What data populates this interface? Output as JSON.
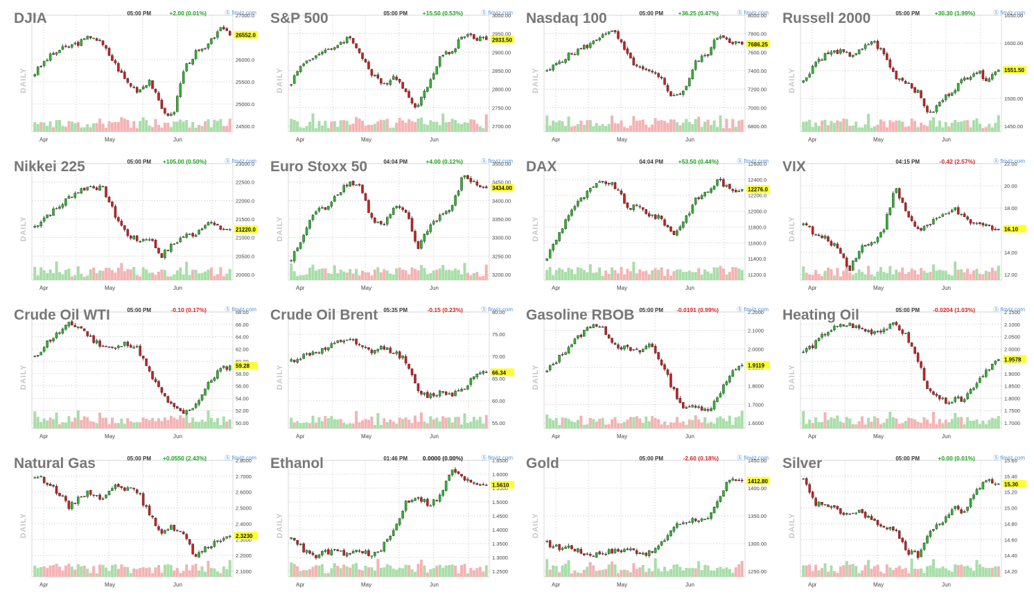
{
  "panels": [
    {
      "title": "DJIA",
      "time": "05:00 PM",
      "change": "+2.00 (0.01%)",
      "dir": "up",
      "source": "finviz.com",
      "last": "26552.0",
      "y_ticks": [
        "27000.0",
        "26000.0",
        "25500.0",
        "25000.0",
        "24500.0"
      ],
      "months": [
        "Apr",
        "May",
        "Jun"
      ]
    },
    {
      "title": "S&P 500",
      "time": "05:00 PM",
      "change": "+15.50 (0.53%)",
      "dir": "up",
      "source": "finviz.com",
      "last": "2933.50",
      "y_ticks": [
        "3000.00",
        "2950.00",
        "2900.00",
        "2850.00",
        "2800.00",
        "2750.00",
        "2700.00"
      ],
      "months": [
        "Apr",
        "May",
        "Jun"
      ]
    },
    {
      "title": "Nasdaq 100",
      "time": "05:00 PM",
      "change": "+36.25 (0.47%)",
      "dir": "up",
      "source": "finviz.com",
      "last": "7686.25",
      "y_ticks": [
        "8000.00",
        "7800.00",
        "7600.00",
        "7400.00",
        "7200.00",
        "7000.00",
        "6800.00"
      ],
      "months": [
        "Apr",
        "May",
        "Jun"
      ]
    },
    {
      "title": "Russell 2000",
      "time": "05:00 PM",
      "change": "+30.30 (1.99%)",
      "dir": "up",
      "source": "finviz.com",
      "last": "1551.50",
      "y_ticks": [
        "1650.00",
        "1600.00",
        "1550.00",
        "1500.00",
        "1450.00"
      ],
      "months": [
        "Apr",
        "May",
        "Jun"
      ]
    },
    {
      "title": "Nikkei 225",
      "time": "05:00 PM",
      "change": "+105.00 (0.50%)",
      "dir": "up",
      "source": "finviz.com",
      "last": "21220.0",
      "y_ticks": [
        "23000.0",
        "22500.0",
        "22000.0",
        "21500.0",
        "21000.0",
        "20500.0",
        "20000.0"
      ],
      "months": [
        "Apr",
        "May",
        "Jun"
      ]
    },
    {
      "title": "Euro Stoxx 50",
      "time": "04:04 PM",
      "change": "+4.00 (0.12%)",
      "dir": "up",
      "source": "finviz.com",
      "last": "3434.00",
      "y_ticks": [
        "3500.00",
        "3450.00",
        "3400.00",
        "3350.00",
        "3300.00",
        "3250.00",
        "3200.00"
      ],
      "months": [
        "Apr",
        "May",
        "Jun"
      ]
    },
    {
      "title": "DAX",
      "time": "04:04 PM",
      "change": "+53.50 (0.44%)",
      "dir": "up",
      "source": "finviz.com",
      "last": "12276.0",
      "y_ticks": [
        "12600.0",
        "12400.0",
        "12200.0",
        "12000.0",
        "11800.0",
        "11600.0",
        "11400.0",
        "11200.0"
      ],
      "months": [
        "Apr",
        "May",
        "Jun"
      ]
    },
    {
      "title": "VIX",
      "time": "04:15 PM",
      "change": "-0.42 (2.57%)",
      "dir": "down",
      "source": "finviz.com",
      "last": "16.10",
      "y_ticks": [
        "22.00",
        "20.00",
        "18.00",
        "16.00",
        "14.00",
        "12.00"
      ],
      "months": [
        "Apr",
        "May",
        "Jun"
      ]
    },
    {
      "title": "Crude Oil WTI",
      "time": "05:00 PM",
      "change": "-0.10 (0.17%)",
      "dir": "down",
      "source": "finviz.com",
      "last": "59.28",
      "y_ticks": [
        "68.00",
        "66.00",
        "64.00",
        "62.00",
        "60.00",
        "58.00",
        "56.00",
        "54.00",
        "52.00",
        "50.00"
      ],
      "months": [
        "Apr",
        "May",
        "Jun"
      ]
    },
    {
      "title": "Crude Oil Brent",
      "time": "05:35 PM",
      "change": "-0.15 (0.23%)",
      "dir": "down",
      "source": "finviz.com",
      "last": "66.34",
      "y_ticks": [
        "80.00",
        "75.00",
        "70.00",
        "65.00",
        "60.00",
        "55.00"
      ],
      "months": [
        "Apr",
        "May",
        "Jun"
      ]
    },
    {
      "title": "Gasoline RBOB",
      "time": "05:00 PM",
      "change": "-0.0191 (0.99%)",
      "dir": "down",
      "source": "finviz.com",
      "last": "1.9119",
      "y_ticks": [
        "2.2000",
        "2.1000",
        "2.0000",
        "1.9000",
        "1.8000",
        "1.7000",
        "1.6000"
      ],
      "months": [
        "Apr",
        "May",
        "Jun"
      ]
    },
    {
      "title": "Heating Oil",
      "time": "05:00 PM",
      "change": "-0.0204 (1.03%)",
      "dir": "down",
      "source": "finviz.com",
      "last": "1.9578",
      "y_ticks": [
        "2.1500",
        "2.1000",
        "2.0500",
        "2.0000",
        "1.9500",
        "1.9000",
        "1.8500",
        "1.8000",
        "1.7500",
        "1.7000"
      ],
      "months": [
        "Apr",
        "May",
        "Jun"
      ]
    },
    {
      "title": "Natural Gas",
      "time": "05:00 PM",
      "change": "+0.0550 (2.43%)",
      "dir": "up",
      "source": "finviz.com",
      "last": "2.3230",
      "y_ticks": [
        "2.8000",
        "2.7000",
        "2.6000",
        "2.5000",
        "2.4000",
        "2.3000",
        "2.2000",
        "2.1000"
      ],
      "months": [
        "Apr",
        "May",
        "Jun"
      ]
    },
    {
      "title": "Ethanol",
      "time": "01:46 PM",
      "change": "0.0000 (0.00%)",
      "dir": "flat",
      "source": "finviz.com",
      "last": "1.5610",
      "y_ticks": [
        "1.6500",
        "1.6000",
        "1.5500",
        "1.5000",
        "1.4500",
        "1.4000",
        "1.3500",
        "1.3000",
        "1.2500"
      ],
      "months": [
        "Apr",
        "May",
        "Jun"
      ]
    },
    {
      "title": "Gold",
      "time": "05:00 PM",
      "change": "-2.60 (0.18%)",
      "dir": "down",
      "source": "finviz.com",
      "last": "1412.80",
      "y_ticks": [
        "1450.00",
        "1400.00",
        "1350.00",
        "1300.00",
        "1250.00"
      ],
      "months": [
        "Apr",
        "May",
        "Jun"
      ]
    },
    {
      "title": "Silver",
      "time": "05:00 PM",
      "change": "+0.00 (0.01%)",
      "dir": "up",
      "source": "finviz.com",
      "last": "15.30",
      "y_ticks": [
        "15.60",
        "15.40",
        "15.20",
        "15.00",
        "14.80",
        "14.60",
        "14.40",
        "14.20"
      ],
      "months": [
        "Apr",
        "May",
        "Jun"
      ]
    }
  ],
  "side_label": "DAILY",
  "colors": {
    "up": "#1aa31a",
    "down": "#d22222",
    "candle_up": "#2fb52f",
    "candle_down": "#cc1f1f",
    "vol_up": "#a8dea8",
    "vol_down": "#f4b3b3",
    "last_bg": "#ffff33",
    "title": "#777777"
  },
  "chart_data": [
    {
      "type": "candlestick",
      "title": "DJIA",
      "ylim": [
        24500,
        27000
      ],
      "shape": [
        25700,
        26000,
        26200,
        26300,
        26400,
        26550,
        26300,
        25900,
        25500,
        25300,
        25550,
        24900,
        24700,
        25800,
        26150,
        26250,
        26700,
        26552
      ]
    },
    {
      "type": "candlestick",
      "title": "S&P 500",
      "ylim": [
        2700,
        3000
      ],
      "shape": [
        2820,
        2870,
        2890,
        2900,
        2920,
        2940,
        2900,
        2840,
        2810,
        2840,
        2790,
        2750,
        2820,
        2890,
        2900,
        2950,
        2940,
        2933.5
      ]
    },
    {
      "type": "candlestick",
      "title": "Nasdaq 100",
      "ylim": [
        6800,
        8000
      ],
      "shape": [
        7380,
        7500,
        7570,
        7640,
        7700,
        7820,
        7800,
        7560,
        7420,
        7380,
        7300,
        7110,
        7200,
        7500,
        7580,
        7800,
        7720,
        7686.25
      ]
    },
    {
      "type": "candlestick",
      "title": "Russell 2000",
      "ylim": [
        1450,
        1650
      ],
      "shape": [
        1530,
        1565,
        1580,
        1585,
        1578,
        1585,
        1605,
        1580,
        1540,
        1530,
        1510,
        1470,
        1495,
        1515,
        1535,
        1550,
        1535,
        1551.5
      ]
    },
    {
      "type": "candlestick",
      "title": "Nikkei 225",
      "ylim": [
        20000,
        23000
      ],
      "shape": [
        21300,
        21600,
        21800,
        22100,
        22300,
        22400,
        22300,
        21600,
        21100,
        20900,
        21000,
        20500,
        20800,
        21050,
        21100,
        21450,
        21250,
        21220
      ]
    },
    {
      "type": "candlestick",
      "title": "Euro Stoxx 50",
      "ylim": [
        3200,
        3500
      ],
      "shape": [
        3240,
        3300,
        3370,
        3380,
        3420,
        3450,
        3440,
        3350,
        3330,
        3380,
        3370,
        3270,
        3330,
        3360,
        3380,
        3470,
        3445,
        3434
      ]
    },
    {
      "type": "candlestick",
      "title": "DAX",
      "ylim": [
        11200,
        12600
      ],
      "shape": [
        11420,
        11700,
        12000,
        12150,
        12300,
        12380,
        12300,
        12050,
        12050,
        11950,
        11900,
        11700,
        11900,
        12150,
        12250,
        12400,
        12250,
        12276
      ]
    },
    {
      "type": "candlestick",
      "title": "VIX",
      "ylim": [
        12,
        22
      ],
      "shape": [
        16.8,
        15.5,
        15.2,
        14.4,
        12.5,
        14.5,
        14.8,
        16.2,
        19.8,
        17.5,
        16.0,
        16.5,
        17.2,
        18.0,
        17.0,
        16.5,
        16.4,
        16.1
      ]
    },
    {
      "type": "candlestick",
      "title": "Crude Oil WTI",
      "ylim": [
        50,
        68
      ],
      "shape": [
        60.5,
        63.0,
        64.5,
        66.0,
        65.5,
        63.5,
        62.5,
        62.0,
        63.0,
        62.0,
        58.0,
        55.0,
        52.5,
        51.5,
        53.0,
        56.0,
        58.5,
        59.28
      ]
    },
    {
      "type": "candlestick",
      "title": "Crude Oil Brent",
      "ylim": [
        55,
        80
      ],
      "shape": [
        69.0,
        70.0,
        71.0,
        71.5,
        73.0,
        74.0,
        72.0,
        71.0,
        72.0,
        71.0,
        69.0,
        62.0,
        61.0,
        62.0,
        61.5,
        63.0,
        65.5,
        66.34
      ]
    },
    {
      "type": "candlestick",
      "title": "Gasoline RBOB",
      "ylim": [
        1.6,
        2.2
      ],
      "shape": [
        1.88,
        1.95,
        2.02,
        2.08,
        2.14,
        2.1,
        2.02,
        2.0,
        1.98,
        2.03,
        1.92,
        1.78,
        1.67,
        1.7,
        1.66,
        1.76,
        1.86,
        1.9119
      ]
    },
    {
      "type": "candlestick",
      "title": "Heating Oil",
      "ylim": [
        1.7,
        2.15
      ],
      "shape": [
        1.99,
        2.02,
        2.07,
        2.09,
        2.1,
        2.08,
        2.07,
        2.08,
        2.1,
        2.05,
        1.95,
        1.82,
        1.79,
        1.79,
        1.8,
        1.86,
        1.92,
        1.9578
      ]
    },
    {
      "type": "candlestick",
      "title": "Natural Gas",
      "ylim": [
        2.1,
        2.8
      ],
      "shape": [
        2.7,
        2.67,
        2.6,
        2.5,
        2.58,
        2.6,
        2.55,
        2.66,
        2.62,
        2.6,
        2.45,
        2.35,
        2.38,
        2.33,
        2.18,
        2.25,
        2.3,
        2.323
      ]
    },
    {
      "type": "candlestick",
      "title": "Ethanol",
      "ylim": [
        1.25,
        1.65
      ],
      "shape": [
        1.38,
        1.33,
        1.3,
        1.32,
        1.32,
        1.31,
        1.33,
        1.3,
        1.34,
        1.4,
        1.5,
        1.52,
        1.49,
        1.52,
        1.62,
        1.58,
        1.57,
        1.561
      ]
    },
    {
      "type": "candlestick",
      "title": "Gold",
      "ylim": [
        1250,
        1450
      ],
      "shape": [
        1300,
        1292,
        1295,
        1283,
        1280,
        1285,
        1286,
        1290,
        1285,
        1282,
        1300,
        1330,
        1340,
        1345,
        1340,
        1380,
        1420,
        1412.8
      ]
    },
    {
      "type": "candlestick",
      "title": "Silver",
      "ylim": [
        14.2,
        15.6
      ],
      "shape": [
        15.35,
        15.05,
        15.05,
        14.95,
        14.92,
        14.95,
        14.85,
        14.72,
        14.75,
        14.45,
        14.4,
        14.7,
        14.8,
        15.0,
        14.95,
        15.2,
        15.38,
        15.3
      ]
    }
  ]
}
